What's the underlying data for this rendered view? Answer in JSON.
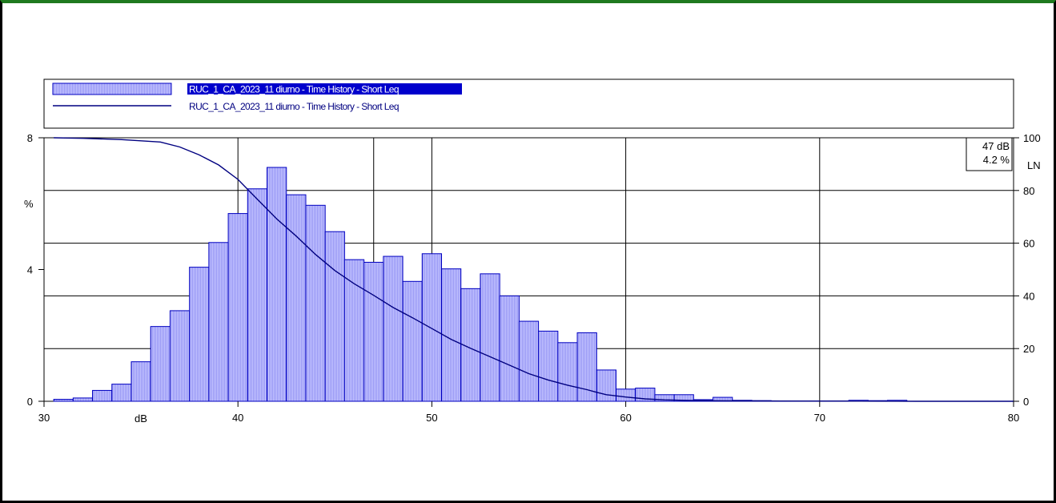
{
  "chart_data": {
    "type": "bar",
    "bin_start": [
      30.5,
      31.5,
      32.5,
      33.5,
      34.5,
      35.5,
      36.5,
      37.5,
      38.5,
      39.5,
      40.5,
      41.5,
      42.5,
      43.5,
      44.5,
      45.5,
      46.5,
      47.5,
      48.5,
      49.5,
      50.5,
      51.5,
      52.5,
      53.5,
      54.5,
      55.5,
      56.5,
      57.5,
      58.5,
      59.5,
      60.5,
      61.5,
      62.5,
      63.5,
      64.5,
      65.5,
      66.5,
      67.5,
      68.5,
      69.5,
      70.5,
      71.5,
      72.5,
      73.5
    ],
    "bin_width": 1,
    "series": [
      {
        "name": "RUC_1_CA_2023_11 diurno - Time History - Short Leq",
        "kind": "histogram",
        "axis": "left",
        "values": [
          0.06,
          0.1,
          0.33,
          0.52,
          1.2,
          2.27,
          2.75,
          4.07,
          4.82,
          5.7,
          6.45,
          7.1,
          6.27,
          5.95,
          5.15,
          4.3,
          4.22,
          4.4,
          3.64,
          4.48,
          4.02,
          3.42,
          3.87,
          3.2,
          2.43,
          2.13,
          1.78,
          2.08,
          0.95,
          0.37,
          0.4,
          0.2,
          0.2,
          0.05,
          0.12,
          0.03,
          0.02,
          0.01,
          0.01,
          0.01,
          0.01,
          0.03,
          0.02,
          0.03
        ]
      },
      {
        "name": "RUC_1_CA_2023_11 diurno - Time History - Short Leq",
        "kind": "cumulative",
        "axis": "right",
        "x": [
          30.5,
          32,
          34,
          36,
          37,
          38,
          39,
          40,
          41,
          42,
          43,
          44,
          45,
          46,
          47,
          48,
          49,
          50,
          51,
          52,
          53,
          54,
          55,
          56,
          57,
          58,
          58.5,
          59,
          60,
          61,
          62,
          63,
          64,
          66,
          68,
          70,
          72,
          74,
          75,
          80
        ],
        "values": [
          100,
          99.8,
          99.3,
          98.4,
          96.5,
          93.5,
          89.7,
          84.2,
          76.7,
          69.2,
          62.7,
          55.7,
          49.6,
          44.6,
          40.2,
          35.6,
          31.7,
          27.6,
          23.5,
          20.1,
          16.9,
          13.7,
          10.5,
          8.1,
          6.1,
          4.4,
          3.4,
          2.5,
          1.6,
          0.9,
          0.55,
          0.35,
          0.25,
          0.15,
          0.1,
          0.07,
          0.05,
          0.02,
          0,
          0
        ]
      }
    ],
    "xlim": [
      30,
      80
    ],
    "ylim_left": [
      0,
      8
    ],
    "ylim_right": [
      0,
      100
    ],
    "x_ticks": [
      "30",
      "40",
      "50",
      "60",
      "70",
      "80"
    ],
    "left_ticks": [
      "0",
      "4",
      "8"
    ],
    "right_ticks": [
      "0",
      "20",
      "40",
      "60",
      "80",
      "100"
    ],
    "xlabel": "dB",
    "ylabel_left": "%",
    "ylabel_right": "LN",
    "cursor": {
      "x": 47,
      "db_label": "47 dB",
      "pct_label": "4.2 %"
    },
    "grid": true,
    "legend_position": "top",
    "colors": {
      "bar_fill": "#b3b3ff",
      "bar_stroke": "#0000c0",
      "line": "#000080",
      "legend_highlight": "#0000cc",
      "cursor_pct": "#0000ff"
    }
  }
}
